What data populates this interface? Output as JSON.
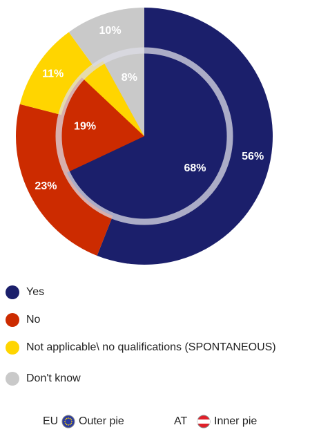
{
  "chart_data": {
    "type": "pie",
    "categories": [
      "Yes",
      "No",
      "Not applicable\\ no qualifications (SPONTANEOUS)",
      "Don't know"
    ],
    "colors": [
      "#1b1f6b",
      "#cc2b00",
      "#ffd500",
      "#c9c9c9"
    ],
    "series": [
      {
        "name": "EU",
        "description": "Outer pie",
        "values": [
          56,
          23,
          11,
          10
        ],
        "value_labels": [
          "56%",
          "23%",
          "11%",
          "10%"
        ]
      },
      {
        "name": "AT",
        "description": "Inner pie",
        "values": [
          68,
          19,
          5,
          8
        ],
        "value_labels": [
          "68%",
          "19%",
          null,
          "8%"
        ]
      }
    ]
  }
}
